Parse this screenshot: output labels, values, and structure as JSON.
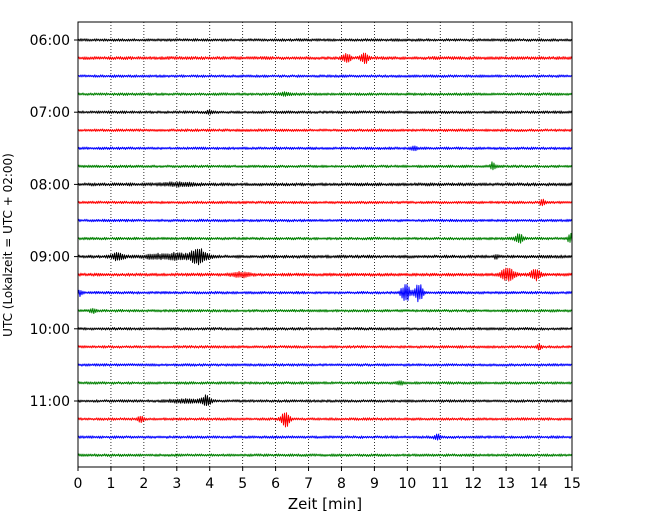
{
  "chart_data": {
    "type": "line",
    "subtype": "helicorder",
    "xlabel": "Zeit  [min]",
    "ylabel": "UTC (Lokalzeit = UTC + 02:00)",
    "xlim": [
      0,
      15
    ],
    "x_ticks": [
      0,
      1,
      2,
      3,
      4,
      5,
      6,
      7,
      8,
      9,
      10,
      11,
      12,
      13,
      14,
      15
    ],
    "y_time_labels": [
      "06:00",
      "07:00",
      "08:00",
      "09:00",
      "10:00",
      "11:00"
    ],
    "trace_minutes": 15,
    "grid": "vertical dotted",
    "colors": [
      "#000000",
      "#ff0000",
      "#0000ff",
      "#008000"
    ],
    "traces": [
      {
        "start": "06:00",
        "amp": 2.5,
        "events": []
      },
      {
        "start": "06:15",
        "amp": 3.0,
        "events": [
          {
            "t": 8.15,
            "amp": 11,
            "dur": 0.18
          },
          {
            "t": 8.7,
            "amp": 11,
            "dur": 0.18
          }
        ]
      },
      {
        "start": "06:30",
        "amp": 2.5,
        "events": []
      },
      {
        "start": "06:45",
        "amp": 2.5,
        "events": [
          {
            "t": 6.3,
            "amp": 3,
            "dur": 0.3
          }
        ]
      },
      {
        "start": "07:00",
        "amp": 2.5,
        "events": [
          {
            "t": 4.0,
            "amp": 3,
            "dur": 0.15
          }
        ]
      },
      {
        "start": "07:15",
        "amp": 2.5,
        "events": []
      },
      {
        "start": "07:30",
        "amp": 2.5,
        "events": [
          {
            "t": 10.2,
            "amp": 5,
            "dur": 0.15
          }
        ]
      },
      {
        "start": "07:45",
        "amp": 2.5,
        "events": [
          {
            "t": 12.6,
            "amp": 8,
            "dur": 0.12
          }
        ]
      },
      {
        "start": "08:00",
        "amp": 3.0,
        "events": [
          {
            "t": 3.1,
            "amp": 3,
            "dur": 0.8
          }
        ]
      },
      {
        "start": "08:15",
        "amp": 2.5,
        "events": [
          {
            "t": 14.1,
            "amp": 7,
            "dur": 0.12
          }
        ]
      },
      {
        "start": "08:30",
        "amp": 2.5,
        "events": []
      },
      {
        "start": "08:45",
        "amp": 2.5,
        "events": [
          {
            "t": 13.4,
            "amp": 9,
            "dur": 0.2
          },
          {
            "t": 14.95,
            "amp": 10,
            "dur": 0.12
          }
        ]
      },
      {
        "start": "09:00",
        "amp": 3.0,
        "events": [
          {
            "t": 1.2,
            "amp": 7,
            "dur": 0.3
          },
          {
            "t": 2.4,
            "amp": 4,
            "dur": 0.6
          },
          {
            "t": 3.0,
            "amp": 6,
            "dur": 0.4
          },
          {
            "t": 3.65,
            "amp": 16,
            "dur": 0.45
          },
          {
            "t": 12.7,
            "amp": 4,
            "dur": 0.1
          }
        ]
      },
      {
        "start": "09:15",
        "amp": 3.0,
        "events": [
          {
            "t": 4.95,
            "amp": 5,
            "dur": 0.4
          },
          {
            "t": 13.05,
            "amp": 13,
            "dur": 0.3
          },
          {
            "t": 13.9,
            "amp": 10,
            "dur": 0.25
          }
        ]
      },
      {
        "start": "09:30",
        "amp": 2.5,
        "events": [
          {
            "t": 0.05,
            "amp": 6,
            "dur": 0.12
          },
          {
            "t": 9.95,
            "amp": 20,
            "dur": 0.2
          },
          {
            "t": 10.35,
            "amp": 18,
            "dur": 0.2
          }
        ]
      },
      {
        "start": "09:45",
        "amp": 2.5,
        "events": [
          {
            "t": 0.45,
            "amp": 4,
            "dur": 0.15
          }
        ]
      },
      {
        "start": "10:00",
        "amp": 2.5,
        "events": []
      },
      {
        "start": "10:15",
        "amp": 2.5,
        "events": [
          {
            "t": 14.0,
            "amp": 6,
            "dur": 0.12
          }
        ]
      },
      {
        "start": "10:30",
        "amp": 2.5,
        "events": []
      },
      {
        "start": "10:45",
        "amp": 2.5,
        "events": [
          {
            "t": 9.8,
            "amp": 3,
            "dur": 0.15
          }
        ]
      },
      {
        "start": "11:00",
        "amp": 2.5,
        "events": [
          {
            "t": 3.3,
            "amp": 3,
            "dur": 0.8
          },
          {
            "t": 3.9,
            "amp": 11,
            "dur": 0.2
          }
        ]
      },
      {
        "start": "11:15",
        "amp": 2.5,
        "events": [
          {
            "t": 1.9,
            "amp": 6,
            "dur": 0.15
          },
          {
            "t": 6.3,
            "amp": 16,
            "dur": 0.2
          }
        ]
      },
      {
        "start": "11:30",
        "amp": 2.5,
        "events": [
          {
            "t": 10.9,
            "amp": 5,
            "dur": 0.15
          }
        ]
      },
      {
        "start": "11:45",
        "amp": 2.5,
        "events": []
      }
    ]
  }
}
